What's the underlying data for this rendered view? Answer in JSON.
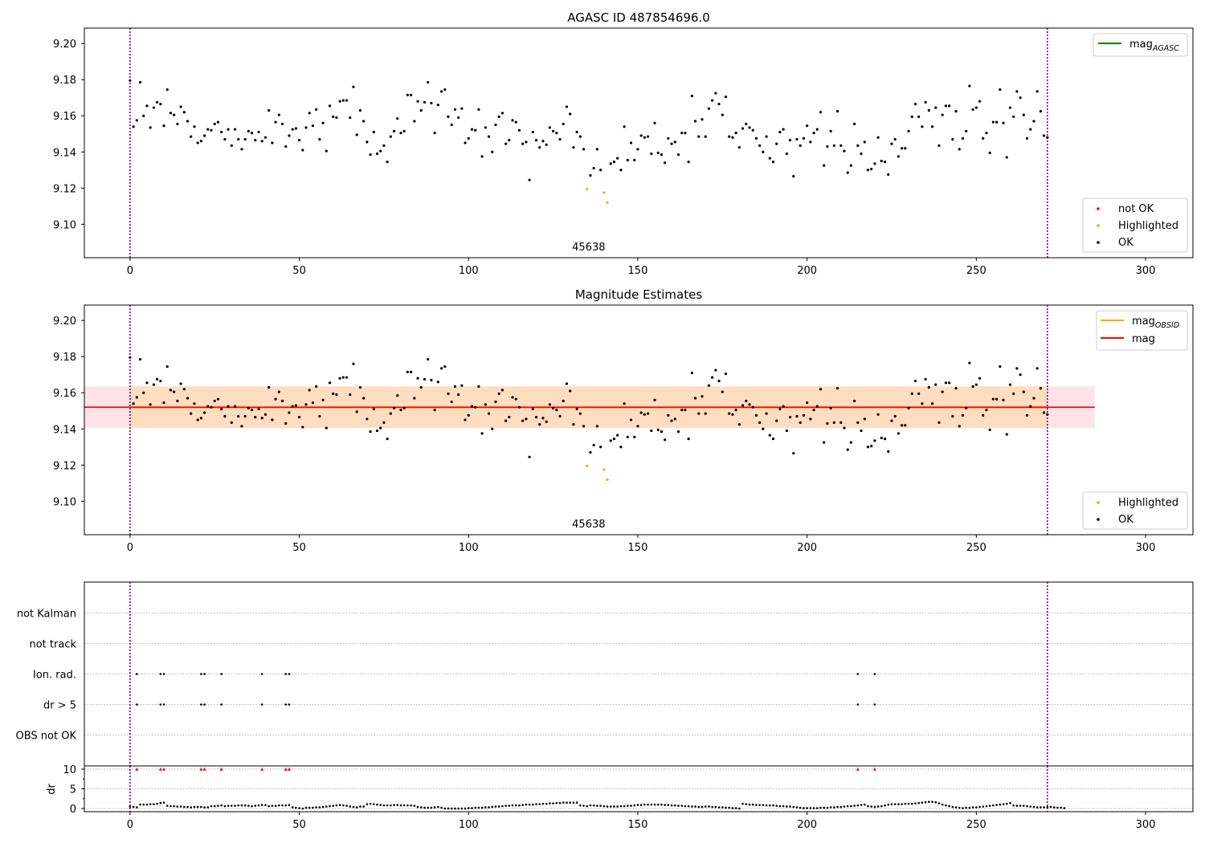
{
  "figure": {
    "width": 1500,
    "height": 1050
  },
  "chart_data": [
    {
      "type": "scatter",
      "title": "AGASC ID 487854696.0",
      "xlabel": "",
      "ylabel": "",
      "xlim": [
        -13.5,
        314
      ],
      "ylim": [
        9.0815,
        9.2085
      ],
      "xticks": [
        0,
        50,
        100,
        150,
        200,
        250,
        300
      ],
      "yticks": [
        9.1,
        9.12,
        9.14,
        9.16,
        9.18,
        9.2
      ],
      "ytick_labels": [
        "9.10",
        "9.12",
        "9.14",
        "9.16",
        "9.18",
        "9.20"
      ],
      "vlines": [
        0,
        271
      ],
      "vline_color": "#800080",
      "obsid_label": {
        "text": "45638",
        "x": 135.5
      },
      "legend_top": [
        {
          "label": "mag",
          "sub": "AGASC",
          "color": "#008000",
          "kind": "line"
        }
      ],
      "legend_bottom": [
        {
          "label": "not OK",
          "color": "#ff0000",
          "kind": "dot"
        },
        {
          "label": "Highlighted",
          "color": "#ffa500",
          "kind": "dot"
        },
        {
          "label": "OK",
          "color": "#000000",
          "kind": "dot"
        }
      ],
      "series": [
        {
          "name": "OK",
          "color": "#000000",
          "x_start": 0,
          "x_step": 1,
          "values": [
            9.1795,
            9.154,
            9.1575,
            9.1785,
            9.16,
            9.1655,
            9.1535,
            9.1645,
            9.1675,
            9.1665,
            9.1545,
            9.1745,
            9.1615,
            9.1605,
            9.1555,
            9.165,
            9.162,
            9.157,
            9.1485,
            9.154,
            9.145,
            9.146,
            9.149,
            9.1525,
            9.152,
            9.1555,
            9.1565,
            9.151,
            9.147,
            9.1525,
            9.1435,
            9.1525,
            9.147,
            9.1415,
            9.147,
            9.1515,
            9.1505,
            9.1465,
            9.151,
            9.146,
            9.148,
            9.163,
            9.145,
            9.1565,
            9.1605,
            9.1555,
            9.143,
            9.149,
            9.1525,
            9.153,
            9.1465,
            9.141,
            9.1535,
            9.1615,
            9.1545,
            9.1635,
            9.147,
            9.156,
            9.1405,
            9.1655,
            9.1595,
            9.159,
            9.168,
            9.1685,
            9.1685,
            9.159,
            9.176,
            9.1495,
            9.163,
            9.157,
            9.1455,
            9.1385,
            9.151,
            9.139,
            9.1405,
            9.1435,
            9.1345,
            9.1485,
            9.1515,
            9.1585,
            9.1505,
            9.1515,
            9.1715,
            9.1715,
            9.157,
            9.168,
            9.163,
            9.1675,
            9.1785,
            9.167,
            9.1505,
            9.166,
            9.1735,
            9.1745,
            9.1595,
            9.155,
            9.1635,
            9.159,
            9.164,
            9.145,
            9.1475,
            9.1525,
            9.152,
            9.1635,
            9.1375,
            9.1535,
            9.1485,
            9.14,
            9.155,
            9.1595,
            9.1615,
            9.1445,
            9.1465,
            9.1575,
            9.1565,
            9.152,
            9.1445,
            9.1455,
            9.1245,
            9.151,
            9.1465,
            9.1425,
            9.146,
            9.144,
            9.1535,
            9.1515,
            9.1505,
            9.147,
            9.1555,
            9.165,
            9.161,
            9.1425,
            9.151,
            9.1485,
            9.1415,
            9.1195,
            9.127,
            9.131,
            9.1415,
            9.13,
            9.1175,
            9.112,
            9.1335,
            9.1345,
            9.1365,
            9.13,
            9.154,
            9.1355,
            9.145,
            9.1355,
            9.1415,
            9.149,
            9.148,
            9.1485,
            9.139,
            9.156,
            9.1395,
            9.1385,
            9.134,
            9.1475,
            9.1445,
            9.1455,
            9.1385,
            9.1505,
            9.1505,
            9.1345,
            9.171,
            9.157,
            9.1485,
            9.158,
            9.1485,
            9.164,
            9.1685,
            9.1725,
            9.1665,
            9.1605,
            9.1705,
            9.1485,
            9.148,
            9.1505,
            9.1425,
            9.153,
            9.1555,
            9.1535,
            9.152,
            9.1475,
            9.1435,
            9.14,
            9.1485,
            9.1365,
            9.1345,
            9.1445,
            9.151,
            9.1525,
            9.139,
            9.1465,
            9.1265,
            9.147,
            9.1435,
            9.1475,
            9.1545,
            9.1455,
            9.1505,
            9.1525,
            9.162,
            9.1325,
            9.143,
            9.1515,
            9.1435,
            9.1625,
            9.1435,
            9.1405,
            9.1285,
            9.1325,
            9.1555,
            9.1435,
            9.139,
            9.1455,
            9.13,
            9.1305,
            9.1335,
            9.148,
            9.135,
            9.1345,
            9.1275,
            9.1445,
            9.147,
            9.1375,
            9.142,
            9.142,
            9.1515,
            9.1595,
            9.1665,
            9.1595,
            9.154,
            9.1675,
            9.163,
            9.154,
            9.1645,
            9.1435,
            9.1605,
            9.1655,
            9.1655,
            9.147,
            9.1625,
            9.1415,
            9.1475,
            9.1515,
            9.1765,
            9.1635,
            9.1645,
            9.168,
            9.1475,
            9.1505,
            9.1395,
            9.1565,
            9.1565,
            9.1745,
            9.156,
            9.137,
            9.1645,
            9.1595,
            9.1735,
            9.17,
            9.1605,
            9.1475,
            9.1525,
            9.157,
            9.1735,
            9.1625,
            9.149,
            9.148
          ]
        },
        {
          "name": "Highlighted",
          "color": "#ffa500",
          "points": [
            [
              135,
              9.1195
            ],
            [
              140,
              9.1175
            ],
            [
              141,
              9.112
            ]
          ]
        }
      ]
    },
    {
      "type": "scatter",
      "title": "Magnitude Estimates",
      "xlabel": "",
      "ylabel": "",
      "xlim": [
        -13.5,
        314
      ],
      "ylim": [
        9.0815,
        9.2085
      ],
      "xticks": [
        0,
        50,
        100,
        150,
        200,
        250,
        300
      ],
      "yticks": [
        9.1,
        9.12,
        9.14,
        9.16,
        9.18,
        9.2
      ],
      "ytick_labels": [
        "9.10",
        "9.12",
        "9.14",
        "9.16",
        "9.18",
        "9.20"
      ],
      "vlines": [
        0,
        271
      ],
      "obsid_label": {
        "text": "45638",
        "x": 135.5
      },
      "mag_line": {
        "value": 9.152,
        "x_range": [
          -13.5,
          285
        ],
        "band": [
          9.1405,
          9.1635
        ],
        "line_color": "#ff0000",
        "band_color": "#ffc0cb"
      },
      "mag_obsid_line": {
        "value": 9.1518,
        "x_range": [
          0,
          271
        ],
        "band": [
          9.1405,
          9.1635
        ],
        "line_color": "#ffa500",
        "band_color": "#ffdab0"
      },
      "legend_top": [
        {
          "label": "mag",
          "sub": "OBSID",
          "color": "#ffa500",
          "kind": "line"
        },
        {
          "label": "mag",
          "sub": "",
          "color": "#ff0000",
          "kind": "line"
        }
      ],
      "legend_bottom": [
        {
          "label": "Highlighted",
          "color": "#ffa500",
          "kind": "dot"
        },
        {
          "label": "OK",
          "color": "#000000",
          "kind": "dot"
        }
      ],
      "series_ref": "same as panel 1"
    },
    {
      "type": "scatter",
      "title": "",
      "xlim": [
        -13.5,
        314
      ],
      "flag_rows": [
        "not Kalman",
        "not track",
        "Ion. rad.",
        "dr > 5",
        "OBS not OK"
      ],
      "flags": {
        "Ion. rad.": [
          2,
          9,
          10,
          21,
          22,
          27,
          39,
          46,
          47,
          215,
          220
        ],
        "dr > 5": [
          2,
          9,
          10,
          21,
          22,
          27,
          39,
          46,
          47,
          215,
          220
        ]
      },
      "vlines": [
        0,
        271
      ]
    },
    {
      "type": "scatter",
      "xlabel": "",
      "ylabel": "dr",
      "xlim": [
        -13.5,
        314
      ],
      "ylim": [
        -0.8,
        10.8
      ],
      "yticks": [
        0,
        5,
        10
      ],
      "xticks": [
        0,
        50,
        100,
        150,
        200,
        250,
        300
      ],
      "clipped_points": {
        "value": 10,
        "color": "#ff0000",
        "x": [
          2,
          9,
          10,
          21,
          22,
          27,
          39,
          46,
          47,
          215,
          220
        ]
      },
      "series": [
        {
          "name": "dr",
          "color": "#000000",
          "x_start": 0,
          "x_step": 1,
          "values": [
            0.5,
            0.4,
            0.3,
            1.0,
            1.0,
            1.0,
            1.1,
            1.1,
            1.2,
            1.4,
            1.5,
            0.7,
            0.6,
            0.6,
            0.5,
            0.5,
            0.4,
            0.4,
            0.3,
            0.4,
            0.4,
            0.4,
            0.3,
            0.3,
            0.6,
            0.6,
            0.7,
            0.8,
            0.6,
            0.7,
            0.7,
            0.7,
            0.8,
            0.8,
            0.8,
            0.7,
            0.6,
            0.7,
            0.8,
            0.9,
            0.9,
            0.6,
            0.7,
            0.7,
            0.8,
            0.8,
            0.8,
            0.9,
            0.3,
            0.2,
            0.1,
            0.0,
            0.2,
            0.2,
            0.2,
            0.3,
            0.3,
            0.4,
            0.5,
            0.6,
            0.7,
            0.8,
            0.9,
            0.8,
            0.7,
            0.5,
            0.4,
            0.3,
            0.5,
            0.5,
            1.1,
            1.2,
            1.1,
            1.0,
            0.9,
            0.8,
            0.8,
            0.8,
            0.9,
            0.9,
            0.8,
            0.8,
            0.8,
            0.8,
            0.7,
            0.4,
            0.3,
            0.2,
            0.2,
            0.2,
            0.3,
            0.4,
            0.2,
            0.0,
            0.0,
            0.0,
            0.0,
            0.0,
            0.0,
            0.0,
            0.1,
            0.1,
            0.2,
            0.2,
            0.2,
            0.3,
            0.3,
            0.4,
            0.5,
            0.5,
            0.6,
            0.7,
            0.7,
            0.8,
            0.8,
            0.8,
            0.9,
            1.0,
            1.0,
            1.0,
            1.1,
            1.1,
            1.2,
            1.2,
            1.3,
            1.3,
            1.4,
            1.4,
            1.5,
            1.5,
            1.5,
            1.5,
            1.5,
            0.8,
            0.7,
            0.6,
            0.8,
            0.8,
            0.7,
            0.7,
            0.6,
            0.5,
            0.5,
            0.5,
            0.5,
            0.6,
            0.6,
            0.7,
            0.7,
            0.8,
            0.9,
            0.9,
            1.0,
            1.0,
            1.0,
            1.0,
            1.0,
            1.0,
            0.9,
            0.9,
            0.8,
            0.8,
            0.7,
            0.7,
            0.6,
            0.6,
            0.5,
            0.5,
            0.4,
            0.4,
            0.5,
            0.5,
            0.4,
            0.4,
            0.3,
            0.3,
            0.2,
            0.2,
            0.1,
            0.1,
            0.0,
            1.2,
            1.1,
            1.0,
            1.0,
            0.9,
            0.9,
            0.9,
            0.8,
            0.8,
            0.8,
            0.7,
            0.6,
            0.6,
            0.5,
            0.5,
            0.4,
            0.3,
            0.2,
            0.1,
            0.1,
            0.1,
            0.1,
            0.1,
            0.2,
            0.2,
            0.2,
            0.3,
            0.3,
            0.4,
            0.4,
            0.5,
            0.6,
            0.6,
            0.7,
            0.8,
            0.9,
            1.0,
            0.6,
            0.5,
            0.4,
            0.5,
            0.6,
            0.8,
            1.0,
            1.1,
            1.1,
            1.1,
            1.1,
            1.2,
            1.2,
            1.2,
            1.3,
            1.4,
            1.5,
            1.6,
            1.7,
            1.7,
            1.6,
            1.3,
            1.0,
            0.8,
            0.6,
            0.4,
            0.3,
            0.2,
            0.1,
            0.2,
            0.2,
            0.3,
            0.3,
            0.4,
            0.5,
            0.6,
            0.7,
            0.8,
            0.9,
            1.0,
            1.1,
            1.2,
            1.4,
            0.8,
            0.7,
            0.7,
            0.7,
            0.6,
            0.5,
            0.4,
            0.3,
            0.3,
            0.3,
            0.4,
            0.4,
            0.3,
            0.2,
            0.2,
            0.1
          ]
        }
      ]
    }
  ]
}
